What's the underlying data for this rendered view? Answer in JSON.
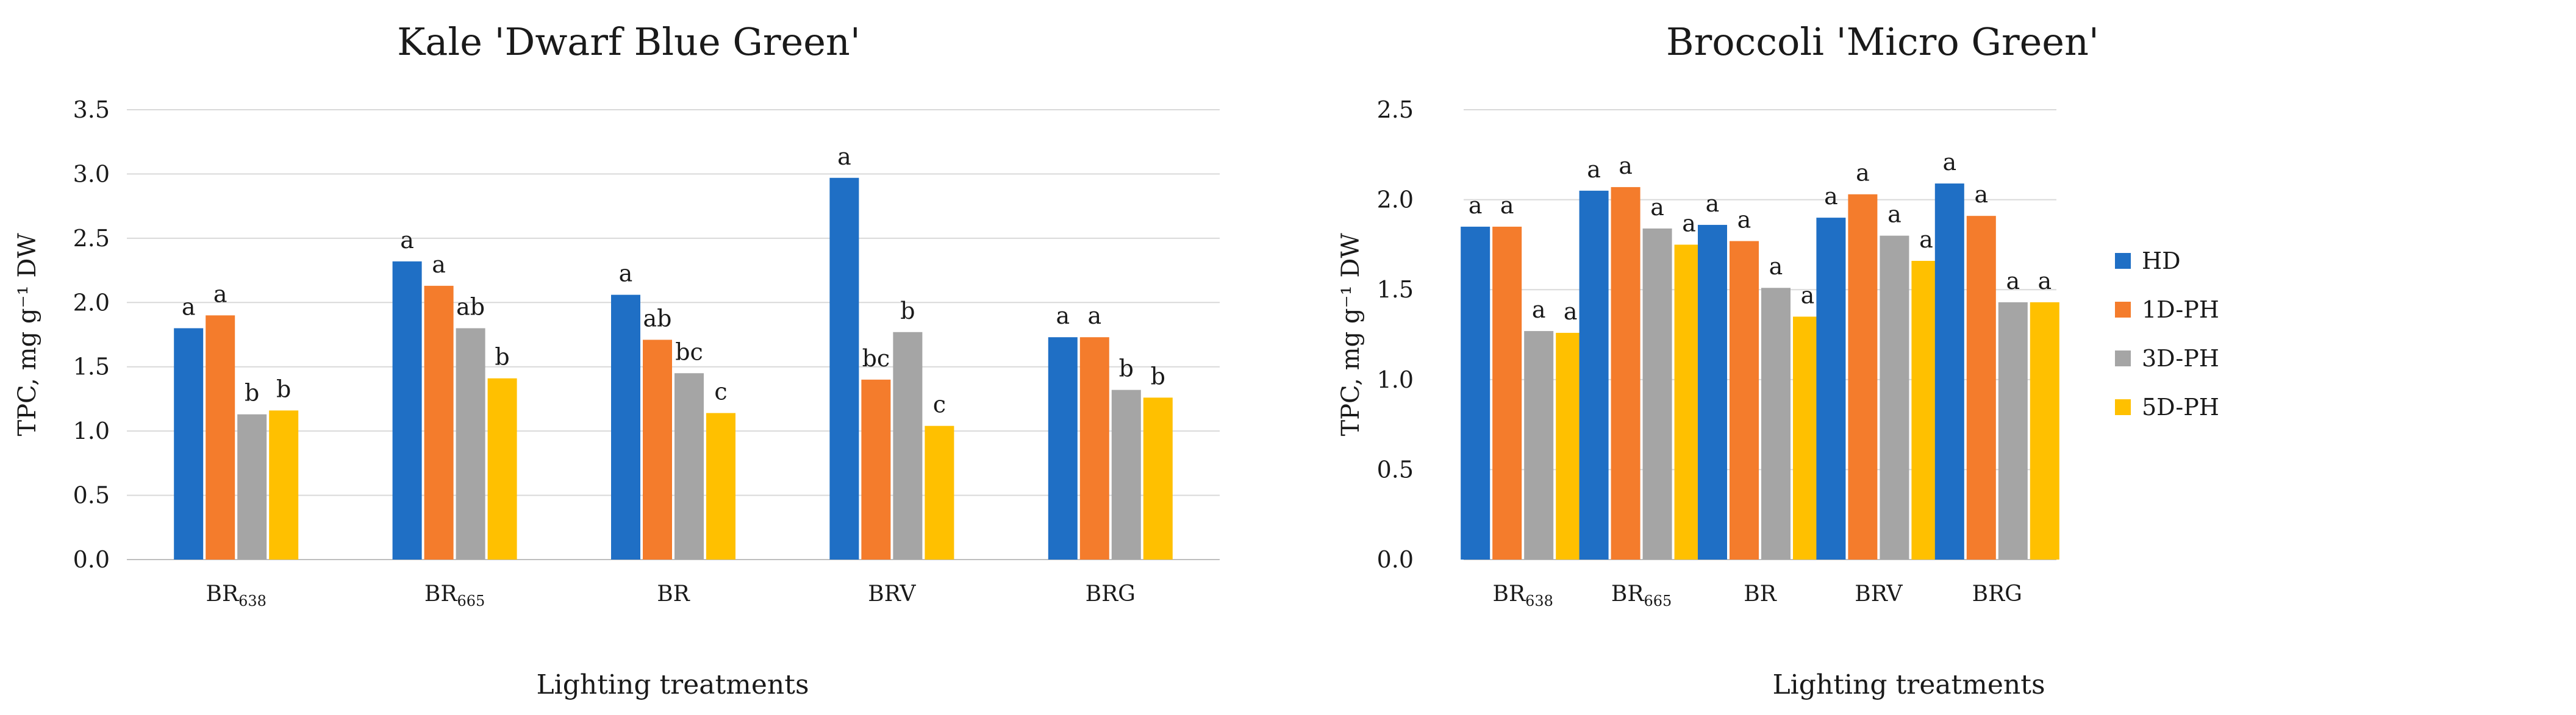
{
  "colors": {
    "HD": "#1f6fc5",
    "1D-PH": "#f47c2c",
    "3D-PH": "#a5a5a5",
    "5D-PH": "#ffc000",
    "grid": "#d9d9d9"
  },
  "legend": [
    "HD",
    "1D-PH",
    "3D-PH",
    "5D-PH"
  ],
  "chart_data": [
    {
      "type": "bar",
      "title": "Kale 'Dwarf Blue Green'",
      "xlabel": "Lighting treatments",
      "ylabel": "TPC, mg g⁻¹ DW",
      "ylim": [
        0,
        3.5
      ],
      "yticks": [
        "0.0",
        "0.5",
        "1.0",
        "1.5",
        "2.0",
        "2.5",
        "3.0",
        "3.5"
      ],
      "categories": [
        {
          "base": "BR",
          "sub": "638"
        },
        {
          "base": "BR",
          "sub": "665"
        },
        {
          "base": "BR",
          "sub": ""
        },
        {
          "base": "BRV",
          "sub": ""
        },
        {
          "base": "BRG",
          "sub": ""
        }
      ],
      "series": [
        {
          "name": "HD",
          "values": [
            1.8,
            2.32,
            2.06,
            2.97,
            1.73
          ],
          "labels": [
            "a",
            "a",
            "a",
            "a",
            "a"
          ]
        },
        {
          "name": "1D-PH",
          "values": [
            1.9,
            2.13,
            1.71,
            1.4,
            1.73
          ],
          "labels": [
            "a",
            "a",
            "ab",
            "bc",
            "a"
          ]
        },
        {
          "name": "3D-PH",
          "values": [
            1.13,
            1.8,
            1.45,
            1.77,
            1.32
          ],
          "labels": [
            "b",
            "ab",
            "bc",
            "b",
            "b"
          ]
        },
        {
          "name": "5D-PH",
          "values": [
            1.16,
            1.41,
            1.14,
            1.04,
            1.26
          ],
          "labels": [
            "b",
            "b",
            "c",
            "c",
            "b"
          ]
        }
      ]
    },
    {
      "type": "bar",
      "title": "Broccoli 'Micro Green'",
      "xlabel": "Lighting treatments",
      "ylabel": "TPC, mg g⁻¹ DW",
      "ylim": [
        0,
        2.5
      ],
      "yticks": [
        "0.0",
        "0.5",
        "1.0",
        "1.5",
        "2.0",
        "2.5"
      ],
      "categories": [
        {
          "base": "BR",
          "sub": "638"
        },
        {
          "base": "BR",
          "sub": "665"
        },
        {
          "base": "BR",
          "sub": ""
        },
        {
          "base": "BRV",
          "sub": ""
        },
        {
          "base": "BRG",
          "sub": ""
        }
      ],
      "series": [
        {
          "name": "HD",
          "values": [
            1.85,
            2.05,
            1.86,
            1.9,
            2.09
          ],
          "labels": [
            "a",
            "a",
            "a",
            "a",
            "a"
          ]
        },
        {
          "name": "1D-PH",
          "values": [
            1.85,
            2.07,
            1.77,
            2.03,
            1.91
          ],
          "labels": [
            "a",
            "a",
            "a",
            "a",
            "a"
          ]
        },
        {
          "name": "3D-PH",
          "values": [
            1.27,
            1.84,
            1.51,
            1.8,
            1.43
          ],
          "labels": [
            "a",
            "a",
            "a",
            "a",
            "a"
          ]
        },
        {
          "name": "5D-PH",
          "values": [
            1.26,
            1.75,
            1.35,
            1.66,
            1.43
          ],
          "labels": [
            "a",
            "a",
            "a",
            "a",
            "a"
          ]
        }
      ]
    }
  ]
}
